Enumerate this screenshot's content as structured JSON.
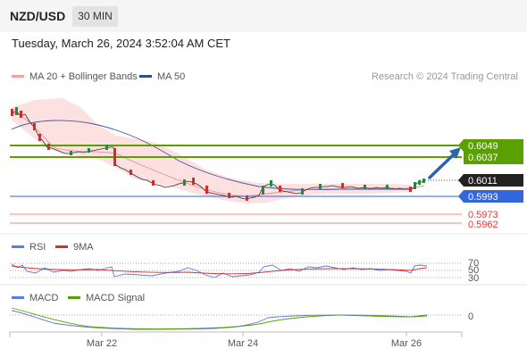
{
  "header": {
    "symbol": "NZD/USD",
    "timeframe": "30 MIN"
  },
  "timestamp": "Tuesday, March 26, 2024 3:52:04 AM CET",
  "legend": {
    "ma20_bb": "MA 20 + Bollinger Bands",
    "ma50": "MA 50",
    "credit": "Research © 2024 Trading Central",
    "rsi": "RSI",
    "ma9": "9MA",
    "macd": "MACD",
    "macd_signal": "MACD Signal"
  },
  "colors": {
    "green_level": "#5aa000",
    "blue_level": "#3366dd",
    "red_level": "#ee8888",
    "up_candle": "#1f8c3b",
    "down_candle": "#d52b2b",
    "arrow": "#2d62b0",
    "bollinger_fill": "#fde0e0",
    "ma20": "#e79090",
    "ma50": "#4057a5",
    "rsi": "#5b7ce0",
    "ma9": "#d53030",
    "macd": "#5b7ce0",
    "macd_signal": "#5aa000"
  },
  "price_levels": [
    {
      "label": "0.6049",
      "kind": "resistance",
      "color": "#5aa000"
    },
    {
      "label": "0.6037",
      "kind": "resistance",
      "color": "#5aa000"
    },
    {
      "label": "0.6011",
      "kind": "last",
      "color": "#222222"
    },
    {
      "label": "0.5993",
      "kind": "pivot",
      "color": "#3366dd"
    },
    {
      "label": "0.5973",
      "kind": "support",
      "color": "#ee8888"
    },
    {
      "label": "0.5962",
      "kind": "support",
      "color": "#ee8888"
    }
  ],
  "rsi_levels": [
    "70",
    "50",
    "30"
  ],
  "macd_level": "0",
  "x_axis": [
    "Mar 22",
    "Mar 24",
    "Mar 26"
  ]
}
